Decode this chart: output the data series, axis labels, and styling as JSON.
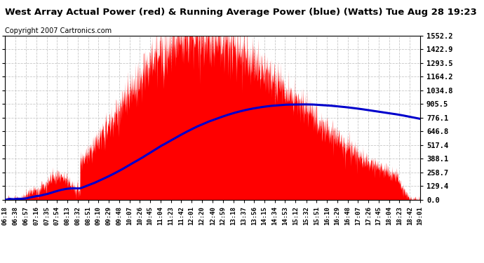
{
  "title": "West Array Actual Power (red) & Running Average Power (blue) (Watts) Tue Aug 28 19:23",
  "copyright": "Copyright 2007 Cartronics.com",
  "yticks": [
    0.0,
    129.4,
    258.7,
    388.1,
    517.4,
    646.8,
    776.1,
    905.5,
    1034.8,
    1164.2,
    1293.5,
    1422.9,
    1552.2
  ],
  "ymax": 1552.2,
  "ymin": 0.0,
  "xtick_labels": [
    "06:18",
    "06:38",
    "06:57",
    "07:16",
    "07:35",
    "07:54",
    "08:13",
    "08:32",
    "08:51",
    "09:10",
    "09:29",
    "09:48",
    "10:07",
    "10:26",
    "10:45",
    "11:04",
    "11:23",
    "11:42",
    "12:01",
    "12:20",
    "12:40",
    "12:59",
    "13:18",
    "13:37",
    "13:56",
    "14:15",
    "14:34",
    "14:53",
    "15:12",
    "15:32",
    "15:51",
    "16:10",
    "16:29",
    "16:48",
    "17:07",
    "17:26",
    "17:45",
    "18:04",
    "18:23",
    "18:42",
    "19:01"
  ],
  "background_color": "#ffffff",
  "plot_bg_color": "#ffffff",
  "grid_color": "#c8c8c8",
  "red_color": "#ff0000",
  "blue_color": "#0000cc",
  "title_color": "#000000",
  "title_fontsize": 9.5,
  "copyright_fontsize": 7
}
